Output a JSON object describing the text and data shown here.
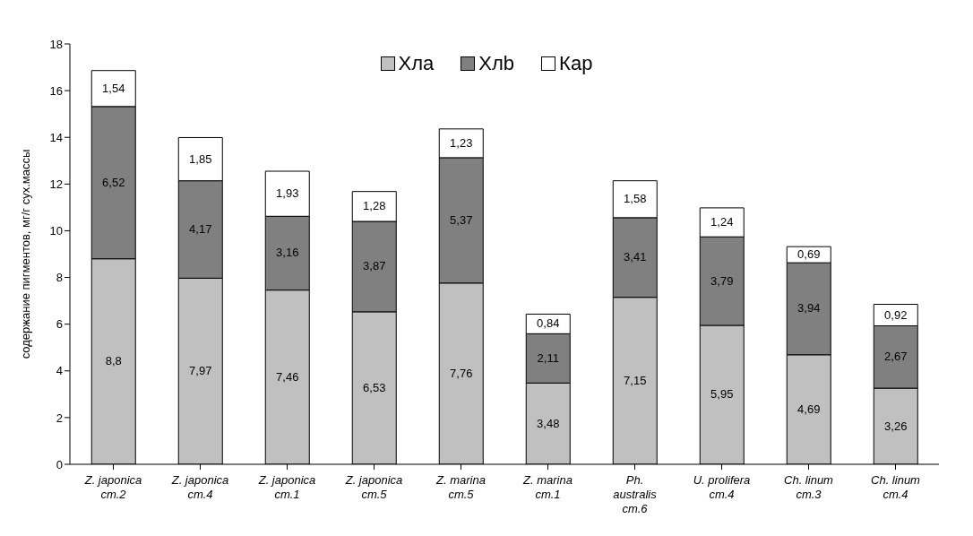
{
  "chart_data": {
    "type": "bar",
    "stacked": true,
    "ylabel": "содержание пигментов, мг/г сух.массы",
    "categories": [
      "Z. japonica\nст.2",
      "Z. japonica\nст.4",
      "Z. japonica\nст.1",
      "Z. japonica\nст.5",
      "Z. marina\nст.5",
      "Z. marina\nст.1",
      "Ph.\naustralis\nст.6",
      "U. prolifera\nст.4",
      "Ch. linum\nст.3",
      "Ch. linum\nст.4"
    ],
    "series": [
      {
        "name": "Хла",
        "color": "#c0c0c0",
        "values": [
          8.8,
          7.97,
          7.46,
          6.53,
          7.76,
          3.48,
          7.15,
          5.95,
          4.69,
          3.26
        ],
        "value_labels": [
          "8,8",
          "7,97",
          "7,46",
          "6,53",
          "7,76",
          "3,48",
          "7,15",
          "5,95",
          "4,69",
          "3,26"
        ]
      },
      {
        "name": "Хлb",
        "color": "#808080",
        "values": [
          6.52,
          4.17,
          3.16,
          3.87,
          5.37,
          2.11,
          3.41,
          3.79,
          3.94,
          2.67
        ],
        "value_labels": [
          "6,52",
          "4,17",
          "3,16",
          "3,87",
          "5,37",
          "2,11",
          "3,41",
          "3,79",
          "3,94",
          "2,67"
        ]
      },
      {
        "name": "Кар",
        "color": "#ffffff",
        "values": [
          1.54,
          1.85,
          1.93,
          1.28,
          1.23,
          0.84,
          1.58,
          1.24,
          0.69,
          0.92
        ],
        "value_labels": [
          "1,54",
          "1,85",
          "1,93",
          "1,28",
          "1,23",
          "0,84",
          "1,58",
          "1,24",
          "0,69",
          "0,92"
        ]
      }
    ],
    "ylim": [
      0,
      18
    ],
    "yticks": [
      0,
      2,
      4,
      6,
      8,
      10,
      12,
      14,
      16,
      18
    ],
    "grid": false,
    "legend": "top"
  }
}
